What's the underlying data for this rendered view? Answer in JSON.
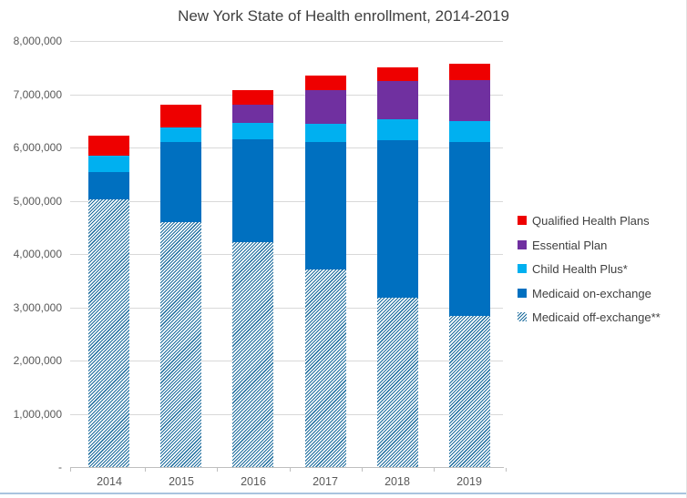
{
  "chart_data": {
    "type": "bar",
    "stacked": true,
    "title": "New York State of Health enrollment, 2014-2019",
    "categories": [
      "2014",
      "2015",
      "2016",
      "2017",
      "2018",
      "2019"
    ],
    "series": [
      {
        "name": "Medicaid off-exchange**",
        "style": "hatch",
        "color": "#17699b",
        "values": [
          5030000,
          4590000,
          4230000,
          3710000,
          3180000,
          2830000
        ]
      },
      {
        "name": "Medicaid on-exchange",
        "style": "solid",
        "color": "#0070c0",
        "values": [
          510000,
          1520000,
          1920000,
          2400000,
          2950000,
          3270000
        ]
      },
      {
        "name": "Child Health Plus*",
        "style": "solid",
        "color": "#00b0f0",
        "values": [
          310000,
          270000,
          310000,
          330000,
          400000,
          400000
        ]
      },
      {
        "name": "Essential Plan",
        "style": "solid",
        "color": "#7030a0",
        "values": [
          0,
          0,
          340000,
          640000,
          710000,
          770000
        ]
      },
      {
        "name": "Qualified Health Plans",
        "style": "solid",
        "color": "#ee0000",
        "values": [
          370000,
          430000,
          280000,
          270000,
          270000,
          300000
        ]
      }
    ],
    "legend": [
      "Qualified Health Plans",
      "Essential Plan",
      "Child Health Plus*",
      "Medicaid on-exchange",
      "Medicaid off-exchange**"
    ],
    "legend_position": "right",
    "ylim": [
      0,
      8000000
    ],
    "y_tick_labels": [
      "-",
      "1,000,000",
      "2,000,000",
      "3,000,000",
      "4,000,000",
      "5,000,000",
      "6,000,000",
      "7,000,000",
      "8,000,000"
    ],
    "grid": true
  },
  "colors": {
    "grid": "#d9d9d9",
    "axis": "#bfbfbf",
    "tick_label": "#595959",
    "title": "#404040",
    "legend_text": "#404040",
    "bottom_line": "#a9c4de"
  }
}
